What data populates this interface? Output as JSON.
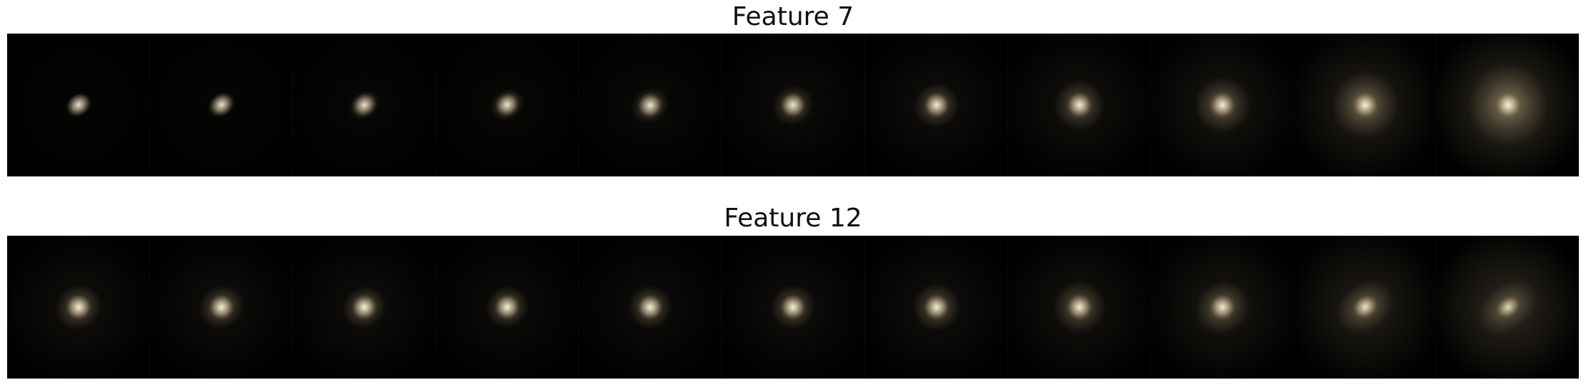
{
  "rows": [
    {
      "title": "Feature 7",
      "frames": [
        {
          "halo": 0.05,
          "spread": 0.2,
          "brightness": 0.85,
          "elong": 1.3
        },
        {
          "halo": 0.06,
          "spread": 0.22,
          "brightness": 0.85,
          "elong": 1.3
        },
        {
          "halo": 0.07,
          "spread": 0.24,
          "brightness": 0.86,
          "elong": 1.25
        },
        {
          "halo": 0.08,
          "spread": 0.26,
          "brightness": 0.87,
          "elong": 1.2
        },
        {
          "halo": 0.1,
          "spread": 0.28,
          "brightness": 0.88,
          "elong": 1.15
        },
        {
          "halo": 0.12,
          "spread": 0.3,
          "brightness": 0.9,
          "elong": 1.1
        },
        {
          "halo": 0.14,
          "spread": 0.33,
          "brightness": 0.92,
          "elong": 1.05
        },
        {
          "halo": 0.18,
          "spread": 0.36,
          "brightness": 0.94,
          "elong": 1.0
        },
        {
          "halo": 0.22,
          "spread": 0.4,
          "brightness": 0.95,
          "elong": 1.0
        },
        {
          "halo": 0.32,
          "spread": 0.48,
          "brightness": 0.97,
          "elong": 1.0
        },
        {
          "halo": 0.45,
          "spread": 0.58,
          "brightness": 1.0,
          "elong": 1.0
        }
      ]
    },
    {
      "title": "Feature 12",
      "frames": [
        {
          "halo": 0.16,
          "spread": 0.34,
          "brightness": 0.95,
          "elong": 1.1
        },
        {
          "halo": 0.15,
          "spread": 0.33,
          "brightness": 0.95,
          "elong": 1.1
        },
        {
          "halo": 0.14,
          "spread": 0.32,
          "brightness": 0.95,
          "elong": 1.1
        },
        {
          "halo": 0.13,
          "spread": 0.31,
          "brightness": 0.95,
          "elong": 1.05
        },
        {
          "halo": 0.13,
          "spread": 0.31,
          "brightness": 0.95,
          "elong": 1.0
        },
        {
          "halo": 0.14,
          "spread": 0.32,
          "brightness": 0.95,
          "elong": 1.0
        },
        {
          "halo": 0.16,
          "spread": 0.34,
          "brightness": 0.95,
          "elong": 1.0
        },
        {
          "halo": 0.19,
          "spread": 0.37,
          "brightness": 0.94,
          "elong": 1.0
        },
        {
          "halo": 0.24,
          "spread": 0.4,
          "brightness": 0.93,
          "elong": 1.1
        },
        {
          "halo": 0.32,
          "spread": 0.44,
          "brightness": 0.88,
          "elong": 1.3
        },
        {
          "halo": 0.4,
          "spread": 0.48,
          "brightness": 0.8,
          "elong": 1.45
        }
      ]
    }
  ],
  "colors": {
    "background": "#000000",
    "glow": "#c9b48a",
    "core": "#fff4d6"
  }
}
